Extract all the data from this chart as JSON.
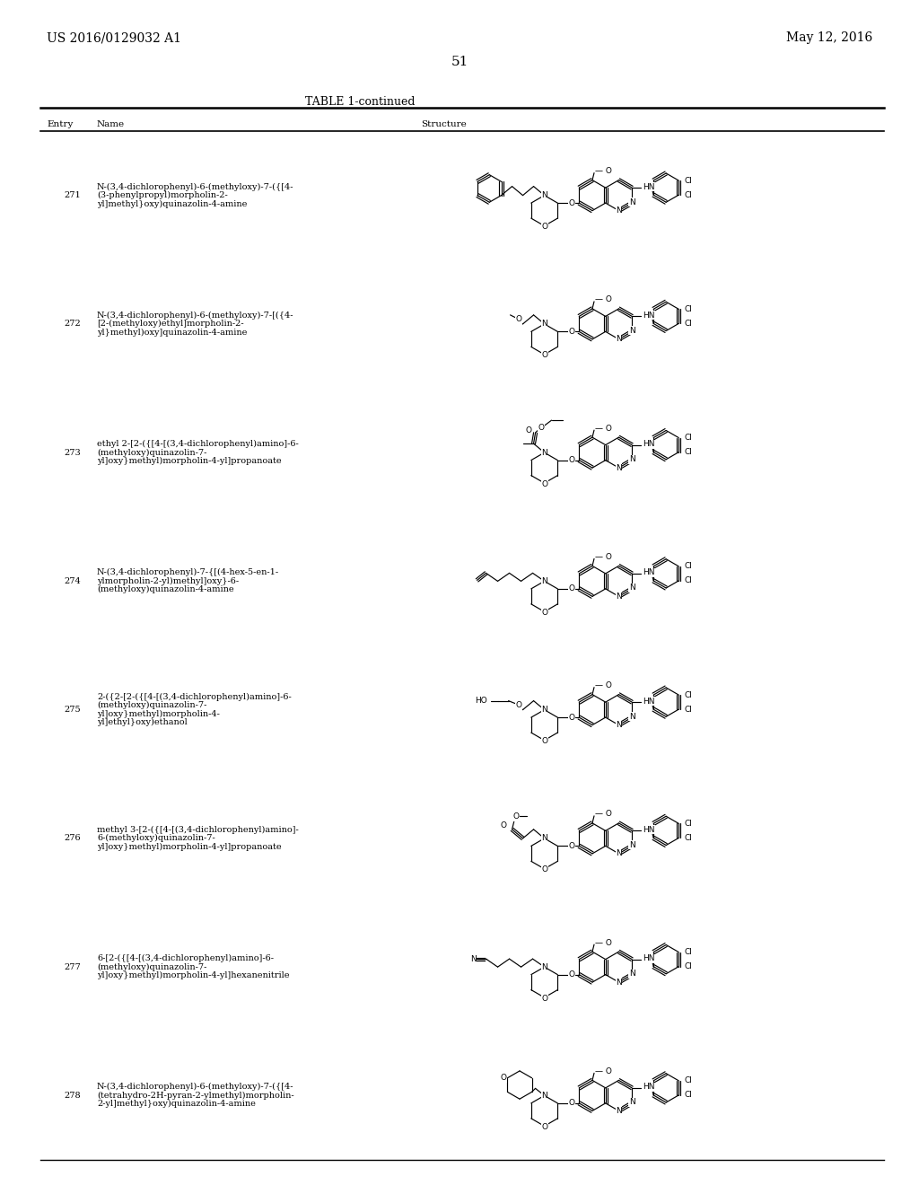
{
  "page_number": "51",
  "patent_number": "US 2016/0129032 A1",
  "patent_date": "May 12, 2016",
  "table_title": "TABLE 1-continued",
  "col_headers": [
    "Entry",
    "Name",
    "Structure"
  ],
  "entries": [
    {
      "num": "271",
      "name": "N-(3,4-dichlorophenyl)-6-(methyloxy)-7-({[4-\n(3-phenylpropyl)morpholin-2-\nyl]methyl}oxy)quinazolin-4-amine"
    },
    {
      "num": "272",
      "name": "N-(3,4-dichlorophenyl)-6-(methyloxy)-7-[({4-\n[2-(methyloxy)ethyl]morpholin-2-\nyl}methyl)oxy]quinazolin-4-amine"
    },
    {
      "num": "273",
      "name": "ethyl 2-[2-({[4-[(3,4-dichlorophenyl)amino]-6-\n(methyloxy)quinazolin-7-\nyl]oxy}methyl)morpholin-4-yl]propanoate"
    },
    {
      "num": "274",
      "name": "N-(3,4-dichlorophenyl)-7-{[(4-hex-5-en-1-\nylmorpholin-2-yl)methyl]oxy}-6-\n(methyloxy)quinazolin-4-amine"
    },
    {
      "num": "275",
      "name": "2-({2-[2-({[4-[(3,4-dichlorophenyl)amino]-6-\n(methyloxy)quinazolin-7-\nyl]oxy}methyl)morpholin-4-\nyl]ethyl}oxy)ethanol"
    },
    {
      "num": "276",
      "name": "methyl 3-[2-({[4-[(3,4-dichlorophenyl)amino]-\n6-(methyloxy)quinazolin-7-\nyl]oxy}methyl)morpholin-4-yl]propanoate"
    },
    {
      "num": "277",
      "name": "6-[2-({[4-[(3,4-dichlorophenyl)amino]-6-\n(methyloxy)quinazolin-7-\nyl]oxy}methyl)morpholin-4-yl]hexanenitrile"
    },
    {
      "num": "278",
      "name": "N-(3,4-dichlorophenyl)-6-(methyloxy)-7-({[4-\n(tetrahydro-2H-pyran-2-ylmethyl)morpholin-\n2-yl]methyl}oxy)quinazolin-4-amine"
    }
  ],
  "bg_color": "#ffffff",
  "text_color": "#000000",
  "line_color": "#000000"
}
